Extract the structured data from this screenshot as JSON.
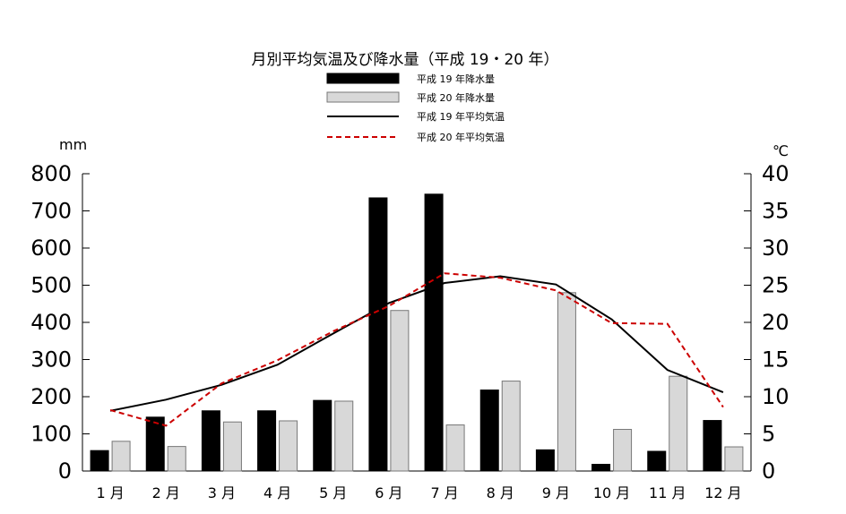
{
  "chart_data": {
    "type": "bar",
    "title": "月別平均気温及び降水量（平成 19・20 年）",
    "y_left_unit": "mm",
    "y_right_unit": "℃",
    "ylim_left": [
      0,
      800
    ],
    "ylim_right": [
      0,
      40
    ],
    "y_left_ticks": [
      "0",
      "100",
      "200",
      "300",
      "400",
      "500",
      "600",
      "700",
      "800"
    ],
    "y_right_ticks": [
      "0",
      "5",
      "10",
      "15",
      "20",
      "25",
      "30",
      "35",
      "40"
    ],
    "categories": [
      "1 月",
      "2 月",
      "3 月",
      "4 月",
      "5 月",
      "6 月",
      "7 月",
      "8 月",
      "9 月",
      "10 月",
      "11 月",
      "12 月"
    ],
    "legend_position": "top-center",
    "grid": false,
    "bar_series": [
      {
        "name": "平成 19 年降水量",
        "color": "#000000",
        "axis": "left",
        "values": [
          55,
          145,
          162,
          162,
          190,
          735,
          745,
          218,
          57,
          18,
          53,
          136
        ]
      },
      {
        "name": "平成 20 年降水量",
        "color": "#d8d8d8",
        "axis": "left",
        "values": [
          80,
          66,
          132,
          135,
          188,
          432,
          124,
          242,
          480,
          112,
          255,
          65
        ]
      }
    ],
    "line_series": [
      {
        "name": "平成 19 年平均気温",
        "color": "#000000",
        "style": "solid",
        "axis": "right",
        "values": [
          8.1,
          9.6,
          11.6,
          14.3,
          18.5,
          22.6,
          25.3,
          26.2,
          25.1,
          20.4,
          13.6,
          10.6
        ]
      },
      {
        "name": "平成 20 年平均気温",
        "color": "#cc0000",
        "style": "dashed",
        "axis": "right",
        "values": [
          8.2,
          6.1,
          11.8,
          14.9,
          18.8,
          22.2,
          26.6,
          26.0,
          24.3,
          19.9,
          19.8,
          8.6
        ]
      }
    ]
  }
}
